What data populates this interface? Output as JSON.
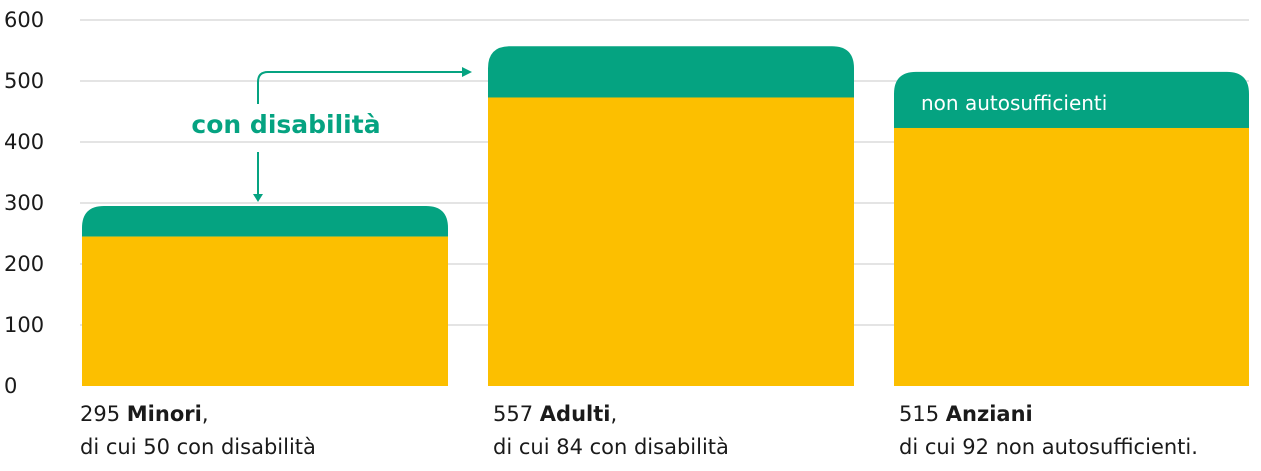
{
  "chart_data": {
    "type": "bar",
    "categories": [
      "Minori",
      "Adulti",
      "Anziani"
    ],
    "series": [
      {
        "values": [
          245,
          473,
          423
        ]
      },
      {
        "values": [
          50,
          84,
          92
        ]
      }
    ],
    "totals": [
      295,
      557,
      515
    ],
    "yticks": [
      0,
      100,
      200,
      300,
      400,
      500,
      600
    ],
    "ylim": [
      0,
      600
    ],
    "grid": true,
    "annotations": [
      "con disabilità",
      "non autosufficienti"
    ],
    "colors": {
      "base": "#fcbf00",
      "top": "#05a381",
      "grid": "#c9c9c9",
      "text": "#1a1a1a"
    }
  },
  "captions": [
    {
      "number": "295",
      "name": "Minori",
      "suffix": ",",
      "line2": "di cui 50 con disabilità"
    },
    {
      "number": "557",
      "name": "Adulti",
      "suffix": ",",
      "line2": "di cui 84 con disabilità"
    },
    {
      "number": "515",
      "name": "Anziani",
      "suffix": "",
      "line2": "di cui 92 non autosufficienti."
    }
  ]
}
